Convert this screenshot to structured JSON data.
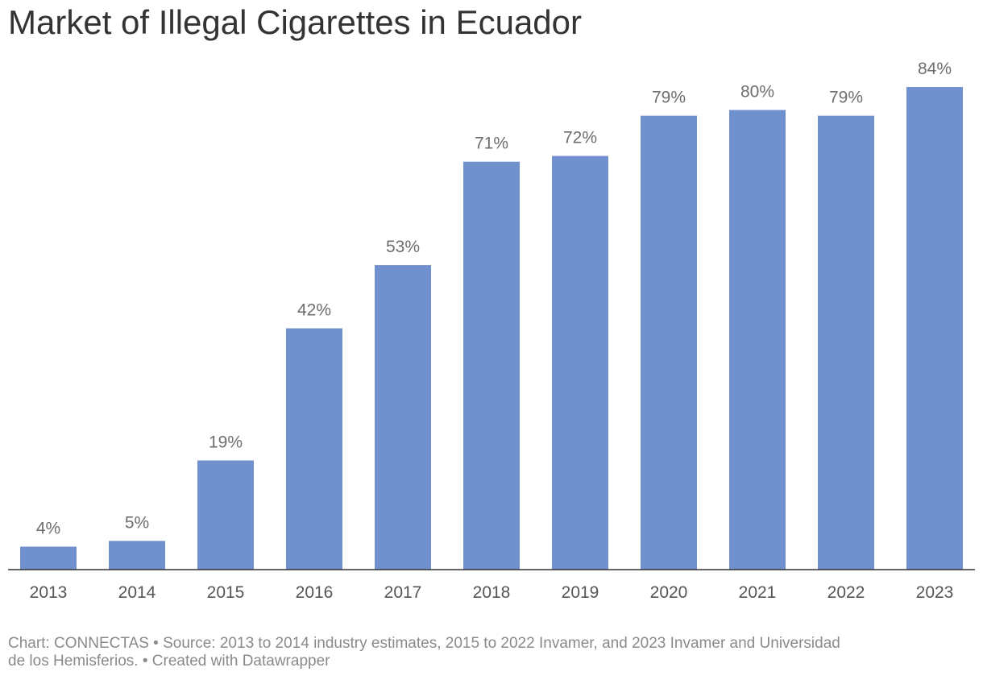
{
  "header": {
    "title": "Market of Illegal Cigarettes in Ecuador"
  },
  "footer": {
    "line1": "Chart: CONNECTAS • Source: 2013 to 2014 industry estimates, 2015 to 2022 Invamer, and 2023 Invamer and Universidad",
    "line2": "de los Hemisferios. • Created with Datawrapper"
  },
  "colors": {
    "bar": "#7090ce",
    "axis": "#333333"
  },
  "chart_data": {
    "type": "bar",
    "title": "Market of Illegal Cigarettes in Ecuador",
    "categories": [
      "2013",
      "2014",
      "2015",
      "2016",
      "2017",
      "2018",
      "2019",
      "2020",
      "2021",
      "2022",
      "2023"
    ],
    "values": [
      4,
      5,
      19,
      42,
      53,
      71,
      72,
      79,
      80,
      79,
      84
    ],
    "value_labels": [
      "4%",
      "5%",
      "19%",
      "42%",
      "53%",
      "71%",
      "72%",
      "79%",
      "80%",
      "79%",
      "84%"
    ],
    "ylim": [
      0,
      84
    ],
    "grid": false,
    "legend": "none"
  }
}
